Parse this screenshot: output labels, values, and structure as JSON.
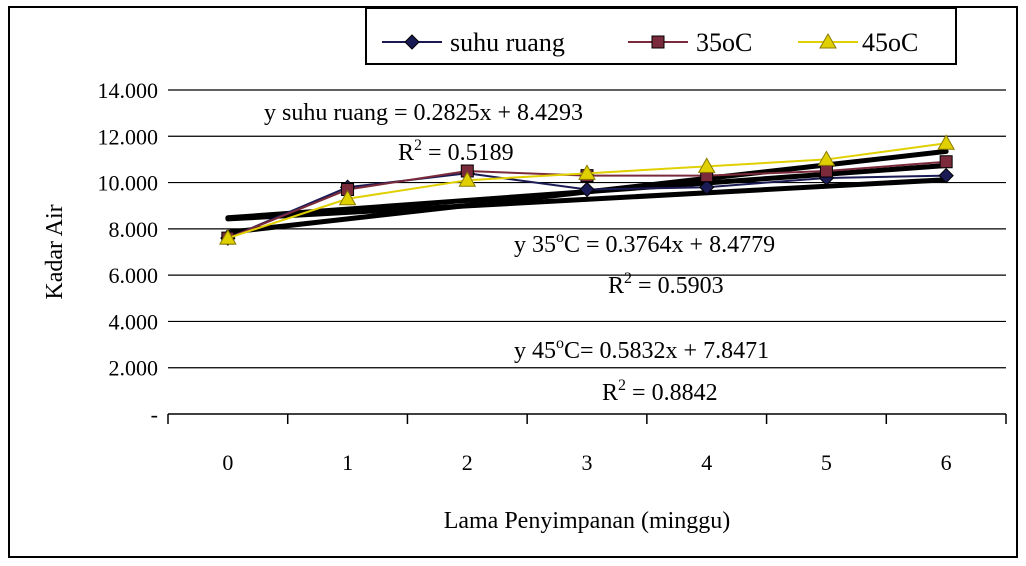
{
  "chart_data": {
    "type": "line",
    "xlabel": "Lama Penyimpanan (minggu)",
    "ylabel": "Kadar Air",
    "categories": [
      "0",
      "1",
      "2",
      "3",
      "4",
      "5",
      "6"
    ],
    "y_ticks": [
      "-",
      "2.000",
      "4.000",
      "6.000",
      "8.000",
      "10.000",
      "12.000",
      "14.000"
    ],
    "ylim": [
      0,
      14
    ],
    "grid": "horizontal",
    "legend_position": "top",
    "series": [
      {
        "name": "suhu ruang",
        "marker": "diamond",
        "color": "#1a1a55",
        "values": [
          7.6,
          9.8,
          10.4,
          9.7,
          9.8,
          10.2,
          10.3
        ]
      },
      {
        "name": "35oC",
        "marker": "square",
        "color": "#7a2a3a",
        "values": [
          7.6,
          9.7,
          10.5,
          10.3,
          10.3,
          10.5,
          10.9
        ]
      },
      {
        "name": "45oC",
        "marker": "triangle",
        "color": "#e0d000",
        "values": [
          7.6,
          9.3,
          10.1,
          10.4,
          10.7,
          11.0,
          11.7
        ]
      }
    ],
    "trendlines": [
      {
        "series": "suhu ruang",
        "slope": 0.2825,
        "intercept": 8.4293
      },
      {
        "series": "35oC",
        "slope": 0.3764,
        "intercept": 8.4779
      },
      {
        "series": "45oC",
        "slope": 0.5832,
        "intercept": 7.8471
      }
    ],
    "annotations": {
      "eq1": "y suhu ruang = 0.2825x + 8.4293",
      "r2_1": "0.5189",
      "eq2_prefix": "y 35",
      "eq2_suffix": "C = 0.3764x + 8.4779",
      "r2_2": "0.5903",
      "eq3_prefix": "y 45",
      "eq3_suffix": "C= 0.5832x + 7.8471",
      "r2_3": "0.8842",
      "degree_sign": "o",
      "r2_prefix": "R",
      "r2_sup": "2",
      "r2_eq": " = "
    }
  }
}
